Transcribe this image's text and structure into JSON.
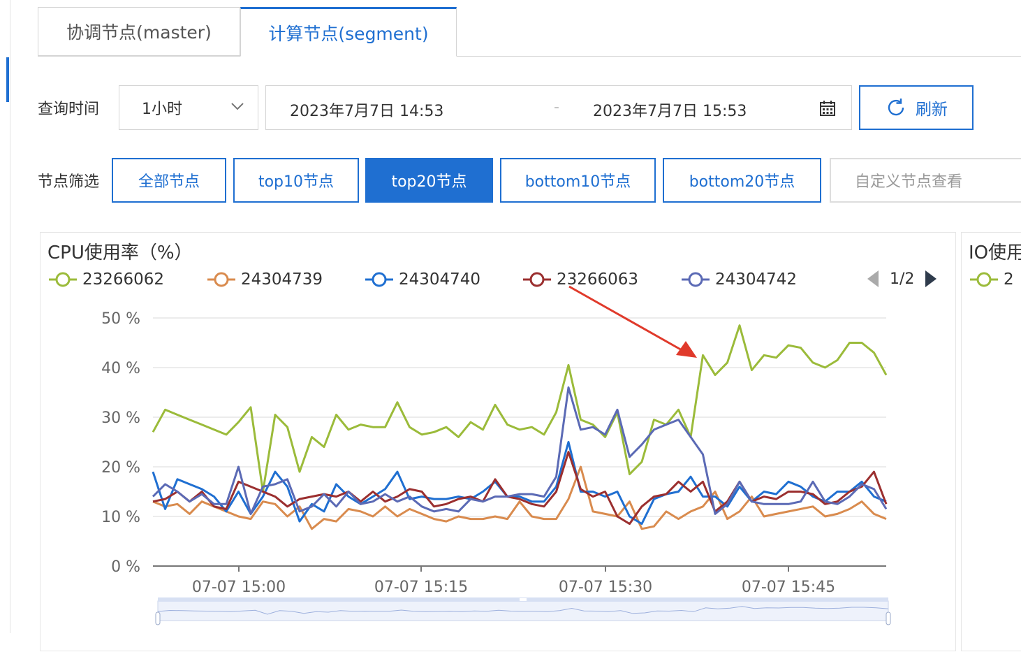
{
  "tabs": [
    {
      "label": "协调节点(master)",
      "active": false
    },
    {
      "label": "计算节点(segment)",
      "active": true
    }
  ],
  "query": {
    "label": "查询时间",
    "range_select": "1小时",
    "start": "2023年7月7日 14:53",
    "separator": "-",
    "end": "2023年7月7日 15:53",
    "refresh_label": "刷新"
  },
  "filter": {
    "label": "节点筛选",
    "buttons": [
      {
        "label": "全部节点",
        "selected": false
      },
      {
        "label": "top10节点",
        "selected": false
      },
      {
        "label": "top20节点",
        "selected": true
      },
      {
        "label": "bottom10节点",
        "selected": false
      },
      {
        "label": "bottom20节点",
        "selected": false
      }
    ],
    "custom_placeholder": "自定义节点查看"
  },
  "chart_data": [
    {
      "type": "line",
      "title": "CPU使用率（%）",
      "ylim": [
        0,
        50
      ],
      "yticks": [
        "0 %",
        "10 %",
        "20 %",
        "30 %",
        "40 %",
        "50 %"
      ],
      "xticks": [
        "07-07 15:00",
        "07-07 15:15",
        "07-07 15:30",
        "07-07 15:45"
      ],
      "legend_page": "1/2",
      "grid": true,
      "series": [
        {
          "name": "23266062",
          "color": "#9bbb3a",
          "values": [
            27,
            31.5,
            30.5,
            29.5,
            28.5,
            27.5,
            26.5,
            29,
            32,
            15,
            30.5,
            28,
            19,
            26,
            24,
            30.5,
            27.5,
            28.5,
            28,
            28,
            33,
            28,
            26.5,
            27,
            28,
            26,
            29,
            27.5,
            32.5,
            28.5,
            27.5,
            28,
            26.5,
            31,
            40.5,
            29.5,
            28.5,
            26,
            31,
            18.5,
            21,
            29.5,
            28.5,
            31.5,
            26,
            42.5,
            38.5,
            41,
            48.5,
            39.5,
            42.5,
            42,
            44.5,
            44,
            41,
            40,
            41.5,
            45,
            45,
            43,
            38.5
          ]
        },
        {
          "name": "24304739",
          "color": "#d98b4e",
          "values": [
            13,
            12,
            12.5,
            10.5,
            13,
            12,
            11,
            10,
            9.5,
            13,
            12.5,
            10,
            12,
            7.5,
            9.5,
            9,
            11.5,
            11,
            10,
            12,
            10,
            11.5,
            10.5,
            9.5,
            9,
            10,
            9.5,
            9.5,
            10,
            9.5,
            13,
            10,
            9.5,
            9.5,
            13.5,
            20,
            11,
            10.5,
            10,
            13,
            7.5,
            8,
            11,
            9.5,
            11,
            12,
            15,
            9.5,
            11,
            14,
            10,
            10.5,
            11,
            11.5,
            12,
            10,
            10.5,
            11.5,
            13,
            10.5,
            9.5
          ]
        },
        {
          "name": "24304740",
          "color": "#1f6fd1",
          "values": [
            19,
            11.5,
            17.5,
            16.5,
            15.5,
            14,
            11,
            15,
            10.5,
            14,
            19,
            16,
            9,
            12.5,
            11,
            16.5,
            14,
            12.5,
            14,
            15.5,
            19,
            13.5,
            14,
            13.5,
            13.5,
            14,
            13.5,
            15,
            17,
            14,
            14,
            13,
            13,
            16,
            25,
            15,
            15,
            14,
            15,
            10,
            8.5,
            13.5,
            14.5,
            15,
            18,
            14,
            14,
            12,
            16,
            13,
            15,
            14.5,
            17,
            16,
            14,
            13,
            15,
            15,
            17,
            14,
            13
          ]
        },
        {
          "name": "23266063",
          "color": "#9b2f2f",
          "values": [
            13,
            13.5,
            15,
            13,
            15,
            12,
            11.5,
            17,
            16,
            15,
            14,
            12,
            13.5,
            14,
            14.5,
            14,
            15,
            13,
            15,
            13,
            14,
            15.5,
            15,
            12,
            12.5,
            13.5,
            14,
            13,
            17.5,
            14,
            13.5,
            12.5,
            12,
            15,
            23,
            15.5,
            14,
            15,
            10,
            8.5,
            12,
            14,
            14.5,
            17,
            15,
            17,
            11,
            13,
            17,
            13,
            14,
            13.5,
            15,
            15,
            14.5,
            12.5,
            13,
            15,
            16,
            19,
            12.5
          ]
        },
        {
          "name": "24304742",
          "color": "#5b6ab5",
          "values": [
            14,
            16.5,
            15,
            13,
            14.5,
            12.5,
            12.5,
            20,
            10.5,
            16,
            16.5,
            17.5,
            11,
            12,
            14.5,
            12,
            15,
            12.5,
            13,
            14.5,
            13,
            14,
            12,
            11,
            11.5,
            11,
            13.5,
            13,
            14,
            14,
            14.5,
            14.5,
            14,
            18,
            36,
            27.5,
            28,
            26.5,
            31.5,
            22,
            24.5,
            27.5,
            28.5,
            29.5,
            26,
            22.5,
            10.5,
            12.5,
            17,
            13,
            12.5,
            12.5,
            12.5,
            13,
            17,
            13,
            12.5,
            14,
            16.5,
            15.5,
            11.5
          ]
        }
      ]
    },
    {
      "type": "line",
      "title": "IO使用",
      "series": [
        {
          "name": "2",
          "color": "#9bbb3a"
        }
      ]
    }
  ]
}
